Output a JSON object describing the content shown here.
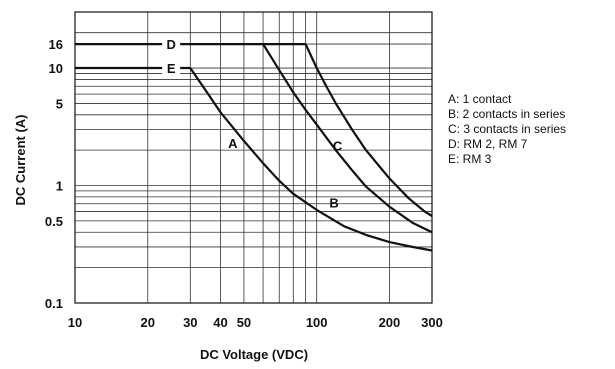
{
  "chart_data": {
    "type": "line",
    "title": "",
    "xlabel": "DC Voltage (VDC)",
    "ylabel": "DC Current (A)",
    "x_scale": "log",
    "y_scale": "log",
    "xlim": [
      10,
      300
    ],
    "ylim": [
      0.1,
      30
    ],
    "grid": true,
    "x_ticks": [
      {
        "value": 10,
        "label": "10"
      },
      {
        "value": 20,
        "label": "20"
      },
      {
        "value": 30,
        "label": "30"
      },
      {
        "value": 40,
        "label": "40"
      },
      {
        "value": 50,
        "label": "50"
      },
      {
        "value": 100,
        "label": "100"
      },
      {
        "value": 200,
        "label": "200"
      },
      {
        "value": 300,
        "label": "300"
      }
    ],
    "y_ticks": [
      {
        "value": 0.1,
        "label": "0.1"
      },
      {
        "value": 0.5,
        "label": "0.5"
      },
      {
        "value": 1,
        "label": "1"
      },
      {
        "value": 5,
        "label": "5"
      },
      {
        "value": 10,
        "label": "10"
      },
      {
        "value": 16,
        "label": "16"
      }
    ],
    "series": [
      {
        "name": "D",
        "label_at": [
          25,
          16
        ],
        "points": [
          [
            10,
            16
          ],
          [
            90,
            16
          ]
        ]
      },
      {
        "name": "E",
        "label_at": [
          25,
          10
        ],
        "points": [
          [
            10,
            10
          ],
          [
            30,
            10
          ]
        ]
      },
      {
        "name": "A",
        "label_at": [
          45,
          2.3
        ],
        "points": [
          [
            30,
            10
          ],
          [
            35,
            6.3
          ],
          [
            40,
            4.2
          ],
          [
            50,
            2.4
          ],
          [
            60,
            1.55
          ],
          [
            70,
            1.1
          ],
          [
            80,
            0.85
          ],
          [
            100,
            0.62
          ],
          [
            130,
            0.45
          ],
          [
            160,
            0.38
          ],
          [
            200,
            0.33
          ],
          [
            250,
            0.3
          ],
          [
            300,
            0.28
          ]
        ]
      },
      {
        "name": "B",
        "label_at": [
          118,
          0.72
        ],
        "points": [
          [
            60,
            16
          ],
          [
            70,
            9.6
          ],
          [
            80,
            6.2
          ],
          [
            90,
            4.4
          ],
          [
            100,
            3.3
          ],
          [
            120,
            2.0
          ],
          [
            140,
            1.35
          ],
          [
            160,
            0.98
          ],
          [
            200,
            0.66
          ],
          [
            250,
            0.48
          ],
          [
            300,
            0.4
          ]
        ]
      },
      {
        "name": "C",
        "label_at": [
          122,
          2.2
        ],
        "points": [
          [
            90,
            16
          ],
          [
            100,
            10
          ],
          [
            110,
            6.9
          ],
          [
            120,
            5.0
          ],
          [
            140,
            3.0
          ],
          [
            160,
            2.0
          ],
          [
            200,
            1.15
          ],
          [
            240,
            0.78
          ],
          [
            280,
            0.6
          ],
          [
            300,
            0.55
          ]
        ]
      }
    ],
    "legend": {
      "placement": "right",
      "entries": [
        "A: 1 contact",
        "B: 2 contacts in series",
        "C: 3 contacts in series",
        "D: RM 2, RM 7",
        "E: RM 3"
      ]
    }
  }
}
